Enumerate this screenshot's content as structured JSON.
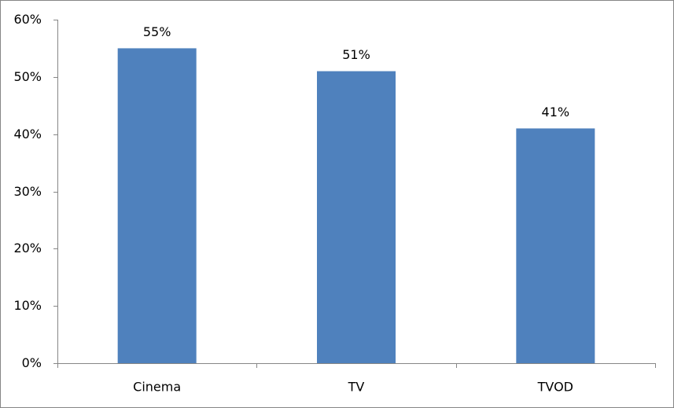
{
  "chart_data": {
    "type": "bar",
    "categories": [
      "Cinema",
      "TV",
      "TVOD"
    ],
    "values": [
      55,
      51,
      41
    ],
    "value_labels": [
      "55%",
      "51%",
      "41%"
    ],
    "color": "#4f81bd",
    "ylim": [
      0,
      60
    ],
    "yticks": [
      {
        "value": 0,
        "label": "0%"
      },
      {
        "value": 10,
        "label": "10%"
      },
      {
        "value": 20,
        "label": "20%"
      },
      {
        "value": 30,
        "label": "30%"
      },
      {
        "value": 40,
        "label": "40%"
      },
      {
        "value": 50,
        "label": "50%"
      },
      {
        "value": 60,
        "label": "60%"
      }
    ],
    "grid": false
  }
}
